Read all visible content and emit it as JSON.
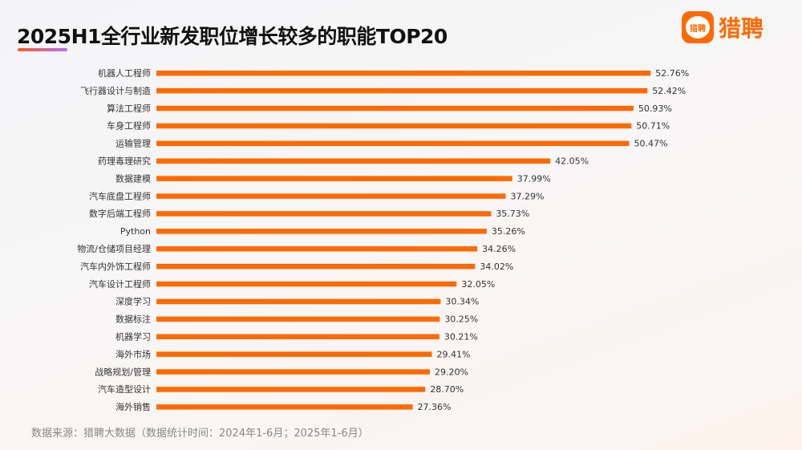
{
  "header": {
    "title": "2025H1全行业新发职位增长较多的职能TOP20",
    "logo_text": "猎聘",
    "logo_badge": "猎聘"
  },
  "footer": {
    "source": "数据来源：猎聘大数据（数据统计时间：2024年1-6月；2025年1-6月）"
  },
  "colors": {
    "bar": "#ff6a00",
    "accent": "#ff6a00"
  },
  "chart_data": {
    "type": "bar",
    "orientation": "horizontal",
    "title": "2025H1全行业新发职位增长较多的职能TOP20",
    "categories": [
      "机器人工程师",
      "飞行器设计与制造",
      "算法工程师",
      "车身工程师",
      "运输管理",
      "药理毒理研究",
      "数据建模",
      "汽车底盘工程师",
      "数字后端工程师",
      "Python",
      "物流/仓储项目经理",
      "汽车内外饰工程师",
      "汽车设计工程师",
      "深度学习",
      "数据标注",
      "机器学习",
      "海外市场",
      "战略规划/管理",
      "汽车造型设计",
      "海外销售"
    ],
    "values": [
      52.76,
      52.42,
      50.93,
      50.71,
      50.47,
      42.05,
      37.99,
      37.29,
      35.73,
      35.26,
      34.26,
      34.02,
      32.05,
      30.34,
      30.25,
      30.21,
      29.41,
      29.2,
      28.7,
      27.36
    ],
    "labels": [
      "52.76%",
      "52.42%",
      "50.93%",
      "50.71%",
      "50.47%",
      "42.05%",
      "37.99%",
      "37.29%",
      "35.73%",
      "35.26%",
      "34.26%",
      "34.02%",
      "32.05%",
      "30.34%",
      "30.25%",
      "30.21%",
      "29.41%",
      "29.20%",
      "28.70%",
      "27.36%"
    ],
    "unit": "%",
    "grid": false,
    "legend": "none",
    "xlim": [
      0,
      60
    ]
  }
}
